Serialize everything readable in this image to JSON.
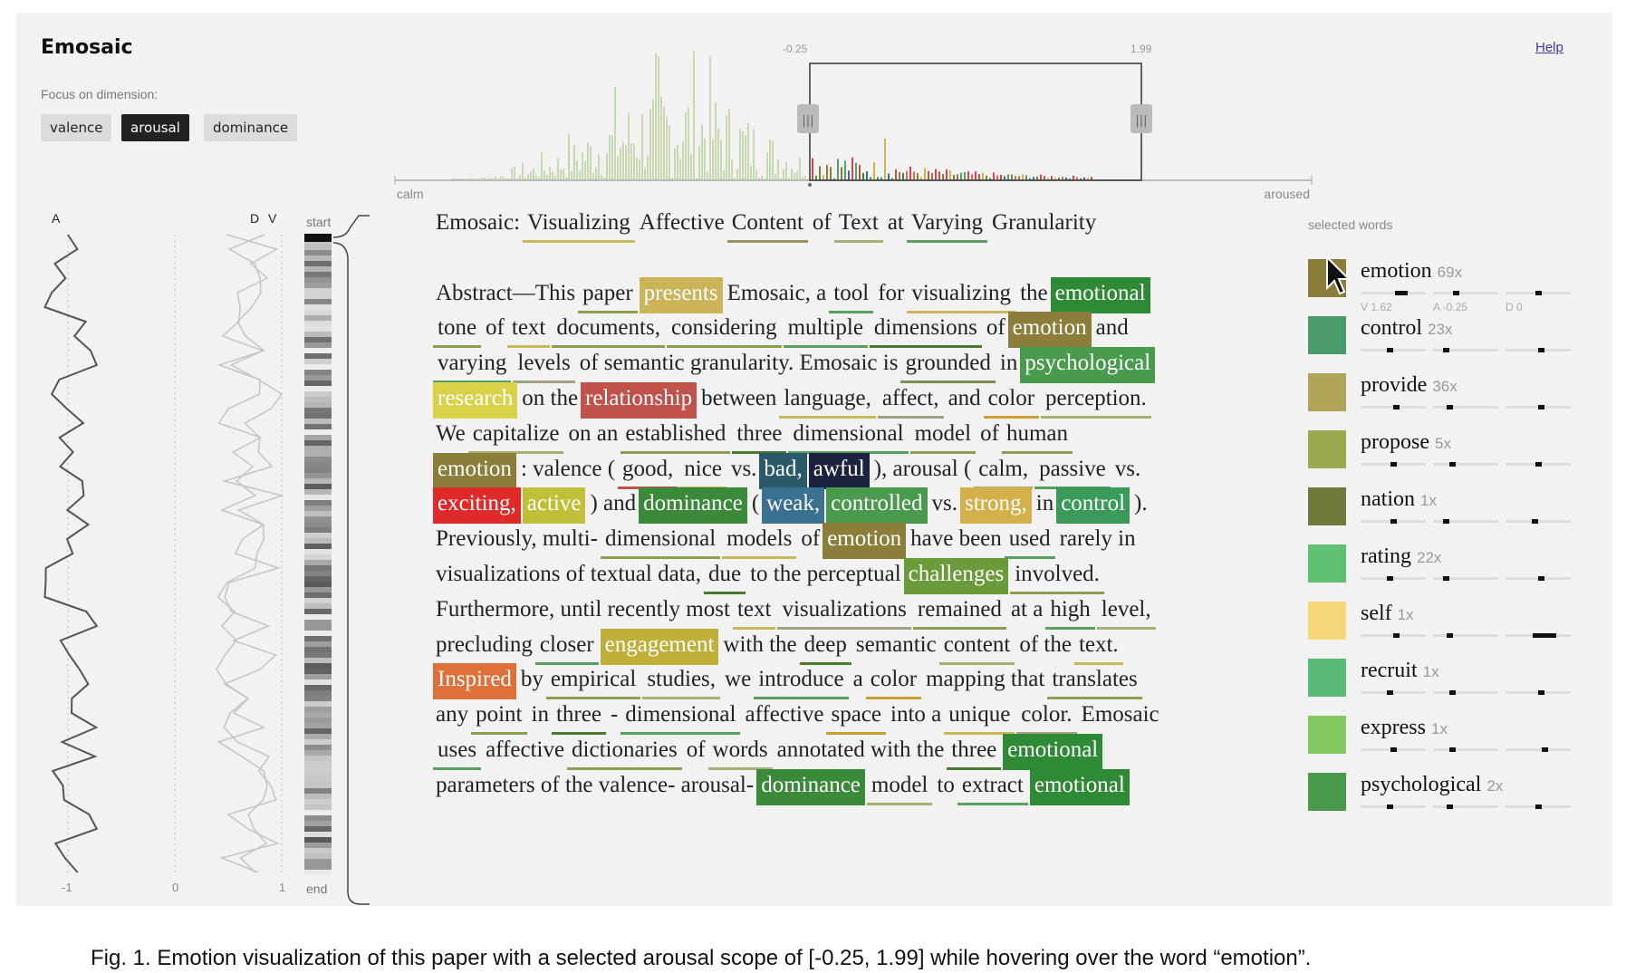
{
  "app": {
    "title": "Emosaic",
    "help": "Help",
    "focus_label": "Focus on dimension:",
    "dimensions": [
      "valence",
      "arousal",
      "dominance"
    ],
    "active_dimension": "arousal"
  },
  "histogram": {
    "range_low": "-0.25",
    "range_high": "1.99",
    "left_label": "calm",
    "right_label": "aroused",
    "selection": [
      -0.25,
      1.99
    ],
    "handle_glyph": "|||"
  },
  "sidebar": {
    "a_label": "A",
    "d_label": "D",
    "v_label": "V",
    "start_label": "start",
    "end_label": "end",
    "tick_minus1": "-1",
    "tick_0": "0",
    "tick_1": "1"
  },
  "document": {
    "lines": [
      [
        [
          "Emosaic:",
          "n",
          ""
        ],
        [
          "Visualizing",
          "u",
          "#c8b85a"
        ],
        [
          "Affective",
          "n",
          ""
        ],
        [
          "Content",
          "u",
          "#9a9060"
        ],
        [
          "of",
          "n",
          ""
        ],
        [
          "Text",
          "u",
          "#a8b070"
        ],
        [
          "at",
          "n",
          ""
        ],
        [
          "Varying",
          "u",
          "#58a060"
        ],
        [
          "Granularity",
          "n",
          ""
        ]
      ],
      [],
      [
        [
          "Abstract—This",
          "n",
          ""
        ],
        [
          "paper",
          "u",
          "#8aa050"
        ],
        [
          "presents",
          "h",
          "#cbb35a"
        ],
        [
          "Emosaic, a",
          "n",
          ""
        ],
        [
          "tool",
          "u",
          "#58a060"
        ],
        [
          "for",
          "n",
          ""
        ],
        [
          "visualizing",
          "u",
          "#c8b85a"
        ],
        [
          "the",
          "n",
          ""
        ],
        [
          "emotional",
          "h",
          "#2f8a36"
        ]
      ],
      [
        [
          "tone",
          "u",
          "#8aa050"
        ],
        [
          "of",
          "n",
          ""
        ],
        [
          "text",
          "u",
          "#c8b85a"
        ],
        [
          "documents,",
          "u",
          "#8aa050"
        ],
        [
          "considering",
          "u",
          "#8aa050"
        ],
        [
          "multiple",
          "u",
          "#58a060"
        ],
        [
          "dimensions",
          "u",
          "#4a7a30"
        ],
        [
          "of",
          "n",
          ""
        ],
        [
          "emotion",
          "h",
          "#8b7d3a"
        ],
        [
          "and",
          "n",
          ""
        ]
      ],
      [
        [
          "varying",
          "u",
          "#58a060"
        ],
        [
          "levels",
          "u",
          "#a0a080"
        ],
        [
          "of semantic granularity. Emosaic is",
          "n",
          ""
        ],
        [
          "grounded",
          "u",
          "#7a9050"
        ],
        [
          "in",
          "n",
          ""
        ],
        [
          "psychological",
          "h",
          "#4a9a4e"
        ]
      ],
      [
        [
          "research",
          "h",
          "#d8d24a"
        ],
        [
          "on the",
          "n",
          ""
        ],
        [
          "relationship",
          "h",
          "#c0524a"
        ],
        [
          "between",
          "n",
          ""
        ],
        [
          "language,",
          "u",
          "#c8b85a"
        ],
        [
          "affect,",
          "u",
          "#a0a080"
        ],
        [
          "and",
          "n",
          ""
        ],
        [
          "color",
          "u",
          "#c8a030"
        ],
        [
          "perception.",
          "u",
          "#a8b070"
        ]
      ],
      [
        [
          "We",
          "n",
          ""
        ],
        [
          "capitalize",
          "u",
          "#a8b070"
        ],
        [
          "on an",
          "n",
          ""
        ],
        [
          "established",
          "u",
          "#8aa050"
        ],
        [
          "three",
          "u",
          "#4a7a30"
        ],
        [
          "dimensional",
          "u",
          "#58a060"
        ],
        [
          "model",
          "u",
          "#8aa050"
        ],
        [
          "of",
          "n",
          ""
        ],
        [
          "human",
          "u",
          "#8aa050"
        ]
      ],
      [
        [
          "emotion",
          "h",
          "#8b7d3a"
        ],
        [
          ": valence (",
          "n",
          ""
        ],
        [
          "good,",
          "u",
          "#c0524a"
        ],
        [
          "nice",
          "u",
          "#c8b85a"
        ],
        [
          "vs.",
          "n",
          ""
        ],
        [
          "bad,",
          "h",
          "#2a5a6a"
        ],
        [
          "awful",
          "h",
          "#1c2240"
        ],
        [
          "), arousal (",
          "n",
          ""
        ],
        [
          "calm,",
          "u",
          "#a8b070"
        ],
        [
          "passive",
          "u",
          "#58a060"
        ],
        [
          "vs.",
          "n",
          ""
        ]
      ],
      [
        [
          "exciting,",
          "h",
          "#e02a2a"
        ],
        [
          "active",
          "h",
          "#c0c038"
        ],
        [
          ") and",
          "n",
          ""
        ],
        [
          "dominance",
          "h",
          "#3a8a3a"
        ],
        [
          "(",
          "n",
          ""
        ],
        [
          "weak,",
          "h",
          "#3a7090"
        ],
        [
          "controlled",
          "h",
          "#4a9a4e"
        ],
        [
          "vs.",
          "n",
          ""
        ],
        [
          "strong,",
          "h",
          "#d4b04a"
        ],
        [
          "in",
          "n",
          ""
        ],
        [
          "control",
          "h",
          "#3a9a5a"
        ],
        [
          ").",
          "n",
          ""
        ]
      ],
      [
        [
          "Previously, multi-",
          "n",
          ""
        ],
        [
          "dimensional",
          "u",
          "#8aa050"
        ],
        [
          "models",
          "u",
          "#c8b85a"
        ],
        [
          "of",
          "n",
          ""
        ],
        [
          "emotion",
          "h",
          "#8b7d3a"
        ],
        [
          "have been",
          "n",
          ""
        ],
        [
          "used",
          "u",
          "#58a060"
        ],
        [
          "rarely in",
          "n",
          ""
        ]
      ],
      [
        [
          "visualizations of textual data,",
          "n",
          ""
        ],
        [
          "due",
          "u",
          "#4a7a30"
        ],
        [
          "to the perceptual",
          "n",
          ""
        ],
        [
          "challenges",
          "h",
          "#6a9a3a"
        ],
        [
          "involved.",
          "u",
          "#8aa050"
        ]
      ],
      [
        [
          "Furthermore, until recently most",
          "n",
          ""
        ],
        [
          "text",
          "u",
          "#c8b85a"
        ],
        [
          "visualizations",
          "u",
          "#a0a080"
        ],
        [
          "remained",
          "u",
          "#8aa050"
        ],
        [
          "at a",
          "n",
          ""
        ],
        [
          "high",
          "u",
          "#58a060"
        ],
        [
          "level,",
          "u",
          "#a8b070"
        ]
      ],
      [
        [
          "precluding",
          "n",
          ""
        ],
        [
          "closer",
          "u",
          "#58a060"
        ],
        [
          "engagement",
          "h",
          "#c0b03a"
        ],
        [
          "with the",
          "n",
          ""
        ],
        [
          "deep",
          "u",
          "#4a7a30"
        ],
        [
          "semantic",
          "n",
          ""
        ],
        [
          "content",
          "u",
          "#a8b070"
        ],
        [
          "of the",
          "n",
          ""
        ],
        [
          "text.",
          "u",
          "#c8b85a"
        ]
      ],
      [
        [
          "Inspired",
          "h",
          "#e0703a"
        ],
        [
          "by",
          "n",
          ""
        ],
        [
          "empirical",
          "u",
          "#8aa050"
        ],
        [
          "studies,",
          "u",
          "#a8b070"
        ],
        [
          "we",
          "n",
          ""
        ],
        [
          "introduce",
          "u",
          "#58a060"
        ],
        [
          "a",
          "n",
          ""
        ],
        [
          "color",
          "u",
          "#c8a030"
        ],
        [
          "mapping that",
          "n",
          ""
        ],
        [
          "translates",
          "u",
          "#8aa050"
        ]
      ],
      [
        [
          "any",
          "n",
          ""
        ],
        [
          "point",
          "u",
          "#8aa050"
        ],
        [
          "in",
          "n",
          ""
        ],
        [
          "three",
          "u",
          "#4a7a30"
        ],
        [
          "-",
          "n",
          ""
        ],
        [
          "dimensional",
          "u",
          "#58a060"
        ],
        [
          "affective",
          "n",
          ""
        ],
        [
          "space",
          "u",
          "#c8a030"
        ],
        [
          "into a",
          "n",
          ""
        ],
        [
          "unique",
          "u",
          "#c8b85a"
        ],
        [
          "color.",
          "u",
          "#a0a080"
        ],
        [
          "Emosaic",
          "n",
          ""
        ]
      ],
      [
        [
          "uses",
          "u",
          "#58a060"
        ],
        [
          "affective",
          "n",
          ""
        ],
        [
          "dictionaries",
          "u",
          "#8aa050"
        ],
        [
          "of",
          "n",
          ""
        ],
        [
          "words",
          "u",
          "#a8b070"
        ],
        [
          "annotated with the",
          "n",
          ""
        ],
        [
          "three",
          "u",
          "#4a7a30"
        ],
        [
          "emotional",
          "h",
          "#2f8a36"
        ]
      ],
      [
        [
          "parameters of the valence- arousal-",
          "n",
          ""
        ],
        [
          "dominance",
          "h",
          "#3a8a3a"
        ],
        [
          "model",
          "u",
          "#a8b070"
        ],
        [
          "to",
          "n",
          ""
        ],
        [
          "extract",
          "u",
          "#58a060"
        ],
        [
          "emotional",
          "h",
          "#2f8a36"
        ]
      ]
    ]
  },
  "selected_words": {
    "header": "selected words",
    "hover_vad": {
      "v": "V 1.62",
      "a": "A -0.25",
      "d": "D 0"
    },
    "items": [
      {
        "word": "emotion",
        "count": "69x",
        "color": "#8b7d3a",
        "v": 0.62,
        "a": 0.35,
        "d": 0.5
      },
      {
        "word": "control",
        "count": "23x",
        "color": "#4a9a6a",
        "v": 0.45,
        "a": 0.2,
        "d": 0.55
      },
      {
        "word": "provide",
        "count": "36x",
        "color": "#b0a458",
        "v": 0.55,
        "a": 0.25,
        "d": 0.55
      },
      {
        "word": "propose",
        "count": "5x",
        "color": "#9aa850",
        "v": 0.5,
        "a": 0.3,
        "d": 0.5
      },
      {
        "word": "nation",
        "count": "1x",
        "color": "#6e7a3a",
        "v": 0.5,
        "a": 0.2,
        "d": 0.45
      },
      {
        "word": "rating",
        "count": "22x",
        "color": "#5ec070",
        "v": 0.45,
        "a": 0.2,
        "d": 0.55
      },
      {
        "word": "self",
        "count": "1x",
        "color": "#f5d878",
        "v": 0.55,
        "a": 0.25,
        "d": 0.6
      },
      {
        "word": "recruit",
        "count": "1x",
        "color": "#5aba78",
        "v": 0.45,
        "a": 0.3,
        "d": 0.55
      },
      {
        "word": "express",
        "count": "1x",
        "color": "#86c860",
        "v": 0.5,
        "a": 0.3,
        "d": 0.6
      },
      {
        "word": "psychological",
        "count": "2x",
        "color": "#4a9a4e",
        "v": 0.45,
        "a": 0.25,
        "d": 0.5
      }
    ]
  },
  "caption": "Fig. 1. Emotion visualization of this paper with a selected arousal scope of [-0.25, 1.99] while hovering over the word “emotion”."
}
